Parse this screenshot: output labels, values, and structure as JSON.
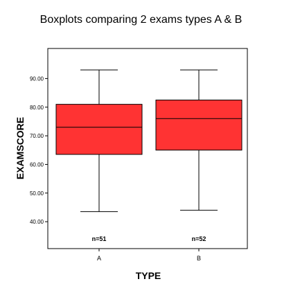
{
  "chart_data": {
    "type": "boxplot",
    "title": "Boxplots comparing 2 exams types A & B",
    "xlabel": "TYPE",
    "ylabel": "EXAMSCORE",
    "ylim": [
      30.6,
      100.5
    ],
    "yticks": [
      "40.00",
      "50.00",
      "60.00",
      "70.00",
      "80.00",
      "90.00"
    ],
    "ytick_values": [
      40,
      50,
      60,
      70,
      80,
      90
    ],
    "categories": [
      "A",
      "B"
    ],
    "boxes": [
      {
        "category": "A",
        "min": 43.5,
        "q1": 63.5,
        "median": 73.0,
        "q3": 81.0,
        "max": 93.0,
        "n_label": "n=51"
      },
      {
        "category": "B",
        "min": 44.0,
        "q1": 65.0,
        "median": 76.0,
        "q3": 82.5,
        "max": 93.0,
        "n_label": "n=52"
      }
    ],
    "box_color": "#ff3333",
    "grid": false,
    "legend": "none"
  }
}
